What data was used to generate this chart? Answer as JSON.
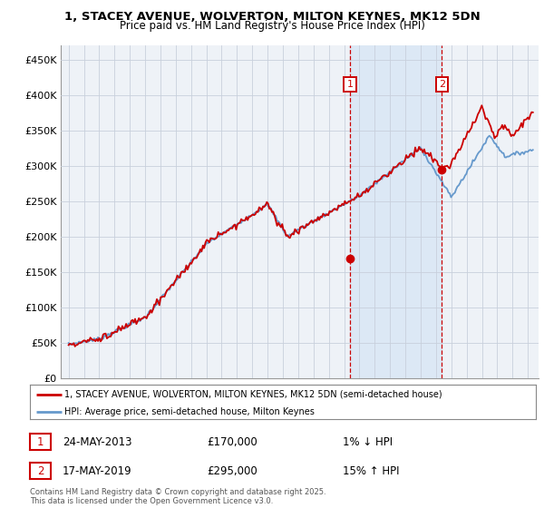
{
  "title_line1": "1, STACEY AVENUE, WOLVERTON, MILTON KEYNES, MK12 5DN",
  "title_line2": "Price paid vs. HM Land Registry's House Price Index (HPI)",
  "ylabel_ticks": [
    "£0",
    "£50K",
    "£100K",
    "£150K",
    "£200K",
    "£250K",
    "£300K",
    "£350K",
    "£400K",
    "£450K"
  ],
  "ytick_values": [
    0,
    50000,
    100000,
    150000,
    200000,
    250000,
    300000,
    350000,
    400000,
    450000
  ],
  "ylim": [
    0,
    470000
  ],
  "xlim_start": 1994.5,
  "xlim_end": 2025.7,
  "sale1_date": "24-MAY-2013",
  "sale1_price": 170000,
  "sale1_pct": "1%",
  "sale1_dir": "↓",
  "sale1_year": 2013.38,
  "sale2_date": "17-MAY-2019",
  "sale2_price": 295000,
  "sale2_pct": "15%",
  "sale2_dir": "↑",
  "sale2_year": 2019.38,
  "legend_line1": "1, STACEY AVENUE, WOLVERTON, MILTON KEYNES, MK12 5DN (semi-detached house)",
  "legend_line2": "HPI: Average price, semi-detached house, Milton Keynes",
  "footer": "Contains HM Land Registry data © Crown copyright and database right 2025.\nThis data is licensed under the Open Government Licence v3.0.",
  "sold_color": "#cc0000",
  "hpi_color": "#6699cc",
  "background_color": "#ffffff",
  "plot_bg_color": "#eef2f7",
  "shaded_color": "#dce8f5",
  "grid_color": "#c8d0dc"
}
